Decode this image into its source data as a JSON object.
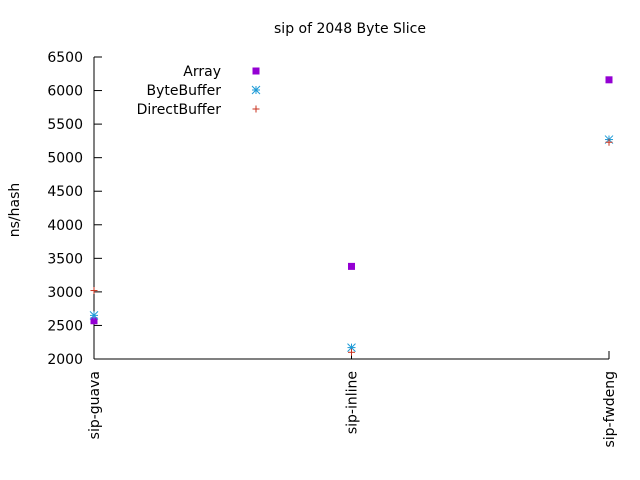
{
  "chart_data": {
    "type": "scatter",
    "title": "sip of 2048 Byte Slice",
    "xlabel": "",
    "ylabel": "ns/hash",
    "categories": [
      "sip-guava",
      "sip-inline",
      "sip-fwdeng"
    ],
    "ylim": [
      2000,
      6500
    ],
    "yticks": [
      2000,
      2500,
      3000,
      3500,
      4000,
      4500,
      5000,
      5500,
      6000,
      6500
    ],
    "ytick_labels": [
      "2000",
      "2500",
      "3000",
      "3500",
      "4000",
      "4500",
      "5000",
      "5500",
      "6000",
      "6500"
    ],
    "legend_position": "top-left",
    "grid": false,
    "series": [
      {
        "name": "Array",
        "marker": "square",
        "color": "#9400d3",
        "values": [
          2570,
          3380,
          6160
        ]
      },
      {
        "name": "ByteBuffer",
        "marker": "asterisk",
        "color": "#1e9bd7",
        "values": [
          2650,
          2170,
          5270
        ]
      },
      {
        "name": "DirectBuffer",
        "marker": "plus",
        "color": "#c8321e",
        "values": [
          3020,
          2100,
          5230
        ]
      }
    ]
  }
}
